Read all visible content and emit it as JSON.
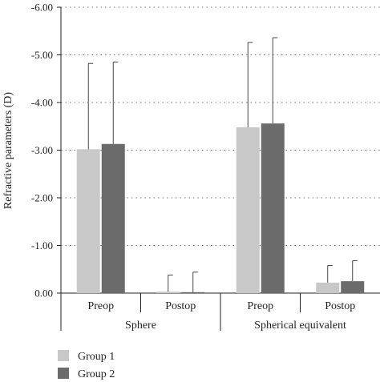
{
  "chart_data": {
    "type": "bar",
    "ylabel": "Refractive parameters (D)",
    "ylim": [
      0,
      -6
    ],
    "y_ticks": [
      "0.00",
      "-1.00",
      "-2.00",
      "-3.00",
      "-4.00",
      "-5.00",
      "-6.00"
    ],
    "y_tick_values": [
      0,
      -1,
      -2,
      -3,
      -4,
      -5,
      -6
    ],
    "grid": "dotted horizontal",
    "categories": [
      "Preop",
      "Postop",
      "Preop",
      "Postop"
    ],
    "groups": [
      {
        "label": "Sphere",
        "categories": [
          "Preop",
          "Postop"
        ]
      },
      {
        "label": "Spherical equivalent",
        "categories": [
          "Preop",
          "Postop"
        ]
      }
    ],
    "series": [
      {
        "name": "Group 1",
        "color": "#c8c8c8",
        "values": [
          -3.02,
          -0.03,
          -3.48,
          -0.22
        ],
        "errors": [
          1.8,
          0.35,
          1.78,
          0.36
        ]
      },
      {
        "name": "Group 2",
        "color": "#6b6b6b",
        "values": [
          -3.13,
          -0.02,
          -3.56,
          -0.25
        ],
        "errors": [
          1.72,
          0.42,
          1.8,
          0.43
        ]
      }
    ],
    "legend_position": "bottom-left"
  }
}
